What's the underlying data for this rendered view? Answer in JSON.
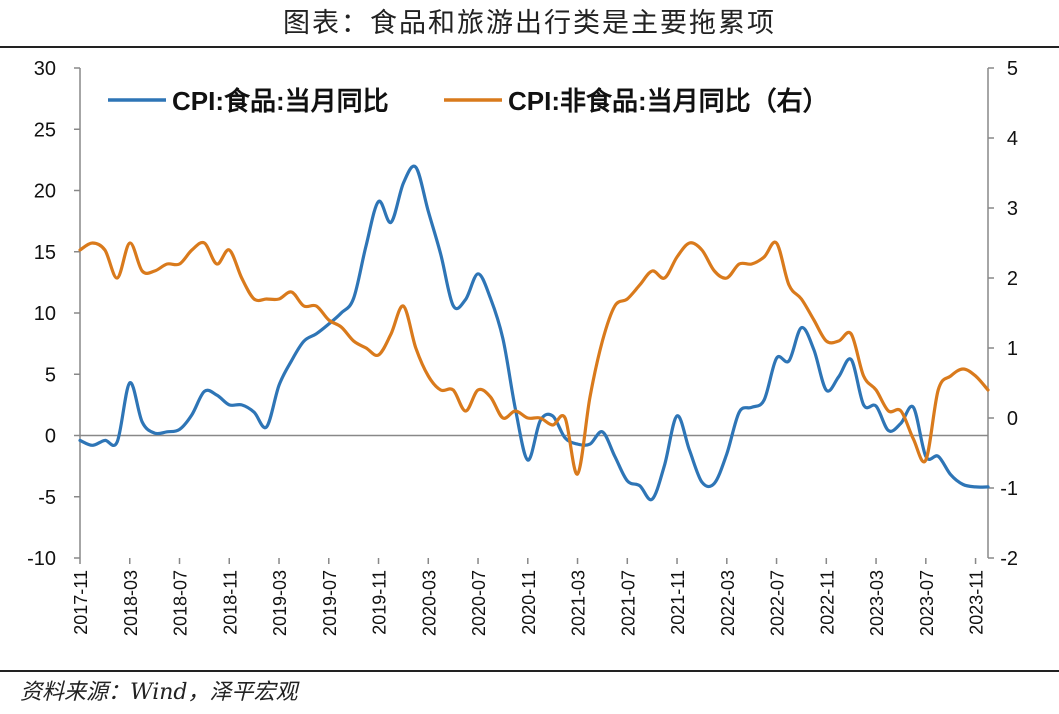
{
  "title": "图表：食品和旅游出行类是主要拖累项",
  "source": "资料来源：Wind，泽平宏观",
  "chart_data": {
    "type": "line",
    "x": [
      "2017-11",
      "2017-12",
      "2018-01",
      "2018-02",
      "2018-03",
      "2018-04",
      "2018-05",
      "2018-06",
      "2018-07",
      "2018-08",
      "2018-09",
      "2018-10",
      "2018-11",
      "2018-12",
      "2019-01",
      "2019-02",
      "2019-03",
      "2019-04",
      "2019-05",
      "2019-06",
      "2019-07",
      "2019-08",
      "2019-09",
      "2019-10",
      "2019-11",
      "2019-12",
      "2020-01",
      "2020-02",
      "2020-03",
      "2020-04",
      "2020-05",
      "2020-06",
      "2020-07",
      "2020-08",
      "2020-09",
      "2020-10",
      "2020-11",
      "2020-12",
      "2021-01",
      "2021-02",
      "2021-03",
      "2021-04",
      "2021-05",
      "2021-06",
      "2021-07",
      "2021-08",
      "2021-09",
      "2021-10",
      "2021-11",
      "2021-12",
      "2022-01",
      "2022-02",
      "2022-03",
      "2022-04",
      "2022-05",
      "2022-06",
      "2022-07",
      "2022-08",
      "2022-09",
      "2022-10",
      "2022-11",
      "2022-12",
      "2023-01",
      "2023-02",
      "2023-03",
      "2023-04",
      "2023-05",
      "2023-06",
      "2023-07",
      "2023-08",
      "2023-09",
      "2023-10",
      "2023-11",
      "2023-12"
    ],
    "x_tick_labels": [
      "2017-11",
      "2018-03",
      "2018-07",
      "2018-11",
      "2019-03",
      "2019-07",
      "2019-11",
      "2020-03",
      "2020-07",
      "2020-11",
      "2021-03",
      "2021-07",
      "2021-11",
      "2022-03",
      "2022-07",
      "2022-11",
      "2023-03",
      "2023-07",
      "2023-11"
    ],
    "series": [
      {
        "name": "CPI:食品:当月同比",
        "axis": "left",
        "color": "#2e75b6",
        "values": [
          -0.4,
          -0.8,
          -0.4,
          -0.5,
          4.3,
          1.1,
          0.2,
          0.3,
          0.5,
          1.7,
          3.6,
          3.3,
          2.5,
          2.5,
          1.9,
          0.7,
          4.1,
          6.1,
          7.7,
          8.3,
          9.1,
          10.0,
          11.2,
          15.5,
          19.1,
          17.4,
          20.6,
          21.9,
          18.3,
          14.8,
          10.6,
          11.1,
          13.2,
          11.2,
          7.9,
          2.2,
          -2.0,
          1.2,
          1.6,
          -0.2,
          -0.7,
          -0.7,
          0.3,
          -1.7,
          -3.7,
          -4.1,
          -5.2,
          -2.4,
          1.6,
          -1.2,
          -3.8,
          -3.9,
          -1.5,
          1.9,
          2.3,
          2.9,
          6.3,
          6.1,
          8.8,
          7.0,
          3.7,
          4.8,
          6.2,
          2.5,
          2.4,
          0.4,
          1.0,
          2.3,
          -1.7,
          -1.7,
          -3.2,
          -4.0,
          -4.2,
          -4.2
        ],
        "note": "values read from chart"
      },
      {
        "name": "CPI:非食品:当月同比（右）",
        "axis": "right",
        "color": "#d97a1c",
        "values": [
          2.4,
          2.5,
          2.4,
          2.0,
          2.5,
          2.1,
          2.1,
          2.2,
          2.2,
          2.4,
          2.5,
          2.2,
          2.4,
          2.0,
          1.7,
          1.7,
          1.7,
          1.8,
          1.6,
          1.6,
          1.4,
          1.3,
          1.1,
          1.0,
          0.9,
          1.2,
          1.6,
          1.0,
          0.6,
          0.4,
          0.4,
          0.1,
          0.4,
          0.3,
          0.0,
          0.1,
          0.0,
          0.0,
          -0.1,
          0.0,
          -0.8,
          0.3,
          1.1,
          1.6,
          1.7,
          1.9,
          2.1,
          2.0,
          2.3,
          2.5,
          2.4,
          2.1,
          2.0,
          2.2,
          2.2,
          2.3,
          2.5,
          1.9,
          1.7,
          1.4,
          1.1,
          1.1,
          1.2,
          0.6,
          0.4,
          0.1,
          0.1,
          -0.3,
          -0.6,
          0.4,
          0.6,
          0.7,
          0.6,
          0.4
        ]
      }
    ],
    "y_left": {
      "lim": [
        -10,
        30
      ],
      "ticks": [
        -10,
        -5,
        0,
        5,
        10,
        15,
        20,
        25,
        30
      ]
    },
    "y_right": {
      "lim": [
        -2,
        5
      ],
      "ticks": [
        -2,
        -1,
        0,
        1,
        2,
        3,
        4,
        5
      ]
    },
    "zero_line": true,
    "grid": false,
    "legend": "top-left"
  }
}
